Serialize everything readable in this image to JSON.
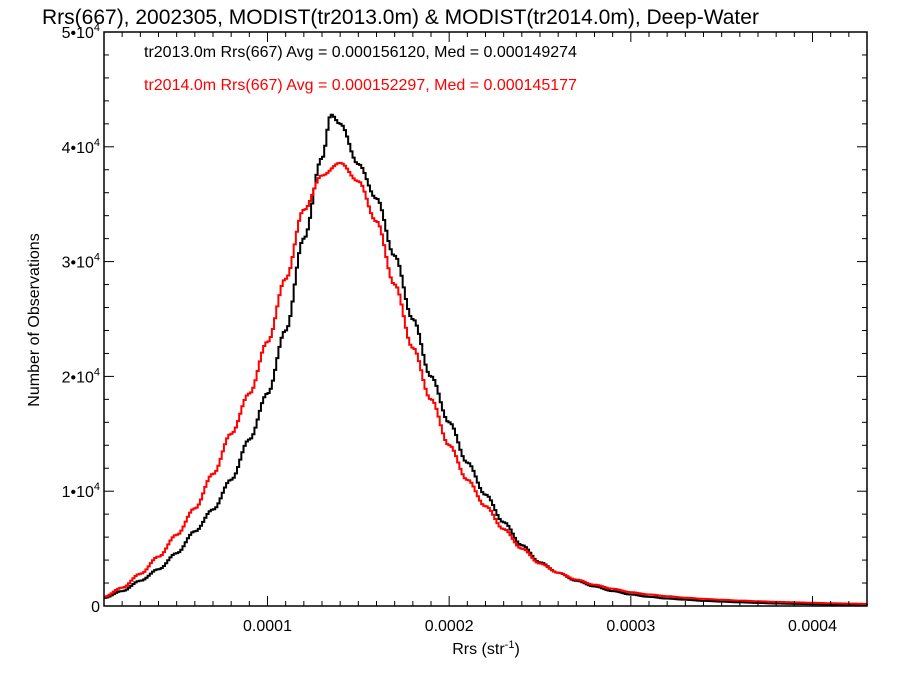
{
  "chart_data": {
    "type": "line",
    "style": "histogram-step",
    "title": "Rrs(667), 2002305, MODIST(tr2013.0m) & MODIST(tr2014.0m), Deep-Water",
    "xlabel": "Rrs (str",
    "xlabel_sup": "-1",
    "xlabel_close": ")",
    "ylabel": "Number of Observations",
    "xlim": [
      1e-05,
      0.00043
    ],
    "ylim": [
      0,
      50000
    ],
    "xticks": [
      {
        "value": 0.0001,
        "label": "0.0001"
      },
      {
        "value": 0.0002,
        "label": "0.0002"
      },
      {
        "value": 0.0003,
        "label": "0.0003"
      },
      {
        "value": 0.0004,
        "label": "0.0004"
      }
    ],
    "yticks": [
      {
        "value": 0,
        "label": "0",
        "sup": ""
      },
      {
        "value": 10000,
        "label": "1•10",
        "sup": "4"
      },
      {
        "value": 20000,
        "label": "2•10",
        "sup": "4"
      },
      {
        "value": 30000,
        "label": "3•10",
        "sup": "4"
      },
      {
        "value": 40000,
        "label": "4•10",
        "sup": "4"
      },
      {
        "value": 50000,
        "label": "5•10",
        "sup": "4"
      }
    ],
    "grid": false,
    "legend_position": "top-left",
    "series": [
      {
        "name": "tr2013.0m",
        "legend": "tr2013.0m Rrs(667) Avg = 0.000156120, Med = 0.000149274",
        "color": "#000000",
        "points": [
          [
            1e-05,
            700
          ],
          [
            2e-05,
            1300
          ],
          [
            3e-05,
            2200
          ],
          [
            4e-05,
            3200
          ],
          [
            5e-05,
            4600
          ],
          [
            6e-05,
            6500
          ],
          [
            7e-05,
            8400
          ],
          [
            8e-05,
            11000
          ],
          [
            9e-05,
            14500
          ],
          [
            0.0001,
            18500
          ],
          [
            0.00011,
            24000
          ],
          [
            0.00012,
            32000
          ],
          [
            0.00013,
            39000
          ],
          [
            0.000135,
            42800
          ],
          [
            0.00014,
            42000
          ],
          [
            0.00015,
            38500
          ],
          [
            0.00016,
            35500
          ],
          [
            0.00017,
            30500
          ],
          [
            0.00018,
            25000
          ],
          [
            0.00019,
            20000
          ],
          [
            0.0002,
            16000
          ],
          [
            0.00021,
            12500
          ],
          [
            0.00022,
            9700
          ],
          [
            0.00023,
            7300
          ],
          [
            0.00024,
            5300
          ],
          [
            0.00025,
            3800
          ],
          [
            0.00026,
            2900
          ],
          [
            0.00027,
            2200
          ],
          [
            0.00028,
            1700
          ],
          [
            0.00029,
            1300
          ],
          [
            0.0003,
            1000
          ],
          [
            0.00031,
            800
          ],
          [
            0.00032,
            650
          ],
          [
            0.00033,
            550
          ],
          [
            0.00034,
            450
          ],
          [
            0.00035,
            380
          ],
          [
            0.00036,
            320
          ],
          [
            0.00037,
            270
          ],
          [
            0.00038,
            220
          ],
          [
            0.00039,
            190
          ],
          [
            0.0004,
            160
          ],
          [
            0.00041,
            130
          ],
          [
            0.00042,
            110
          ],
          [
            0.00043,
            90
          ]
        ]
      },
      {
        "name": "tr2014.0m",
        "legend": "tr2014.0m Rrs(667) Avg = 0.000152297, Med = 0.000145177",
        "color": "#ff0000",
        "points": [
          [
            1e-05,
            800
          ],
          [
            2e-05,
            1600
          ],
          [
            3e-05,
            2800
          ],
          [
            4e-05,
            4300
          ],
          [
            5e-05,
            6200
          ],
          [
            6e-05,
            8500
          ],
          [
            7e-05,
            11500
          ],
          [
            8e-05,
            15000
          ],
          [
            9e-05,
            18500
          ],
          [
            0.0001,
            23000
          ],
          [
            0.00011,
            28500
          ],
          [
            0.00012,
            34500
          ],
          [
            0.00013,
            37500
          ],
          [
            0.00014,
            38600
          ],
          [
            0.00015,
            37000
          ],
          [
            0.00016,
            33500
          ],
          [
            0.00017,
            28000
          ],
          [
            0.00018,
            22500
          ],
          [
            0.00019,
            18000
          ],
          [
            0.0002,
            14000
          ],
          [
            0.00021,
            11000
          ],
          [
            0.00022,
            8700
          ],
          [
            0.00023,
            6700
          ],
          [
            0.00024,
            5000
          ],
          [
            0.00025,
            3700
          ],
          [
            0.00026,
            2900
          ],
          [
            0.00027,
            2300
          ],
          [
            0.00028,
            1850
          ],
          [
            0.00029,
            1500
          ],
          [
            0.0003,
            1200
          ],
          [
            0.00031,
            1000
          ],
          [
            0.00032,
            850
          ],
          [
            0.00033,
            720
          ],
          [
            0.00034,
            620
          ],
          [
            0.00035,
            540
          ],
          [
            0.00036,
            470
          ],
          [
            0.00037,
            410
          ],
          [
            0.00038,
            360
          ],
          [
            0.00039,
            320
          ],
          [
            0.0004,
            280
          ],
          [
            0.00041,
            240
          ],
          [
            0.00042,
            210
          ],
          [
            0.00043,
            180
          ]
        ]
      }
    ]
  }
}
